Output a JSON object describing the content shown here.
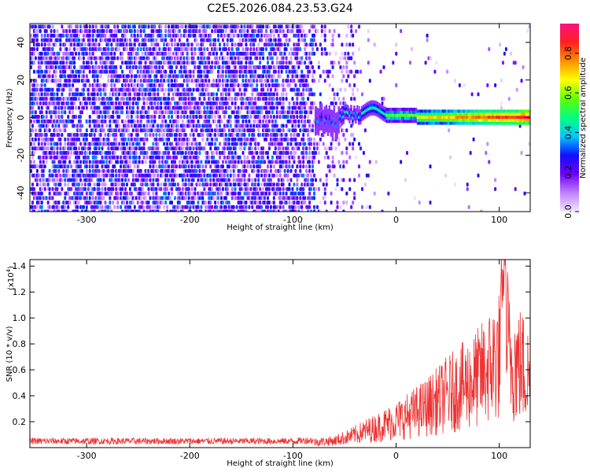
{
  "title": "C2E5.2026.084.23.53.G24",
  "chart_data": [
    {
      "type": "heatmap",
      "title": "C2E5.2026.084.23.53.G24",
      "xlabel": "Height of straight line (km)",
      "ylabel": "Frequency (Hz)",
      "xlim": [
        -355,
        130
      ],
      "ylim": [
        -50,
        50
      ],
      "xticks": [
        -300,
        -200,
        -100,
        0,
        100
      ],
      "yticks": [
        -40,
        -20,
        0,
        20,
        40
      ],
      "colorbar": {
        "label": "Normalized spectral amplitude",
        "range": [
          0.0,
          0.95
        ],
        "ticks": [
          0.0,
          0.2,
          0.4,
          0.6,
          0.8
        ],
        "tick_labels": [
          "0.0",
          "0.2",
          "0.4",
          "0.6",
          "0.8"
        ],
        "colormap": [
          "#f2e6ff",
          "#c080ff",
          "#7000ff",
          "#1010ff",
          "#00c8ff",
          "#00ff80",
          "#60ff00",
          "#ffff00",
          "#ff9000",
          "#ff2020",
          "#ff1080"
        ]
      },
      "description_points": [
        {
          "x": -355,
          "freq_spread": 50,
          "amplitude": 0.15
        },
        {
          "x": -80,
          "freq_spread": 50,
          "amplitude": 0.15
        },
        {
          "x": -75,
          "freq_spread": 6,
          "amplitude": 0.35
        },
        {
          "x": -20,
          "freq_center": 4,
          "amplitude": 0.5
        },
        {
          "x": 0,
          "freq_center": 0,
          "amplitude": 0.6
        },
        {
          "x": 130,
          "freq_center": 0,
          "amplitude": 0.9
        }
      ]
    },
    {
      "type": "line",
      "xlabel": "Height of straight line (km)",
      "ylabel": "SNR (10 * v/v)",
      "y_multiplier": "(x10",
      "y_multiplier_exp": "4",
      "y_multiplier_close": ")",
      "xlim": [
        -355,
        130
      ],
      "ylim": [
        0,
        1.45
      ],
      "xticks": [
        -300,
        -200,
        -100,
        0,
        100
      ],
      "yticks": [
        0.2,
        0.4,
        0.6,
        0.8,
        1.0,
        1.2,
        1.4
      ],
      "ytick_labels": [
        "0.2",
        "0.4",
        "0.6",
        "0.8",
        "1.0",
        "1.2",
        "1.4"
      ],
      "color": "#ee3333",
      "series": [
        {
          "name": "SNR",
          "x": [
            -355,
            -300,
            -250,
            -200,
            -150,
            -100,
            -75,
            -60,
            -50,
            -40,
            -30,
            -20,
            -10,
            0,
            10,
            20,
            30,
            40,
            50,
            60,
            70,
            80,
            90,
            100,
            105,
            110,
            120,
            125,
            130
          ],
          "y": [
            0.05,
            0.05,
            0.05,
            0.05,
            0.05,
            0.05,
            0.06,
            0.07,
            0.1,
            0.13,
            0.17,
            0.2,
            0.24,
            0.28,
            0.32,
            0.37,
            0.42,
            0.48,
            0.55,
            0.6,
            0.66,
            0.72,
            0.82,
            0.95,
            1.45,
            0.9,
            0.85,
            0.8,
            0.7
          ]
        }
      ]
    }
  ]
}
